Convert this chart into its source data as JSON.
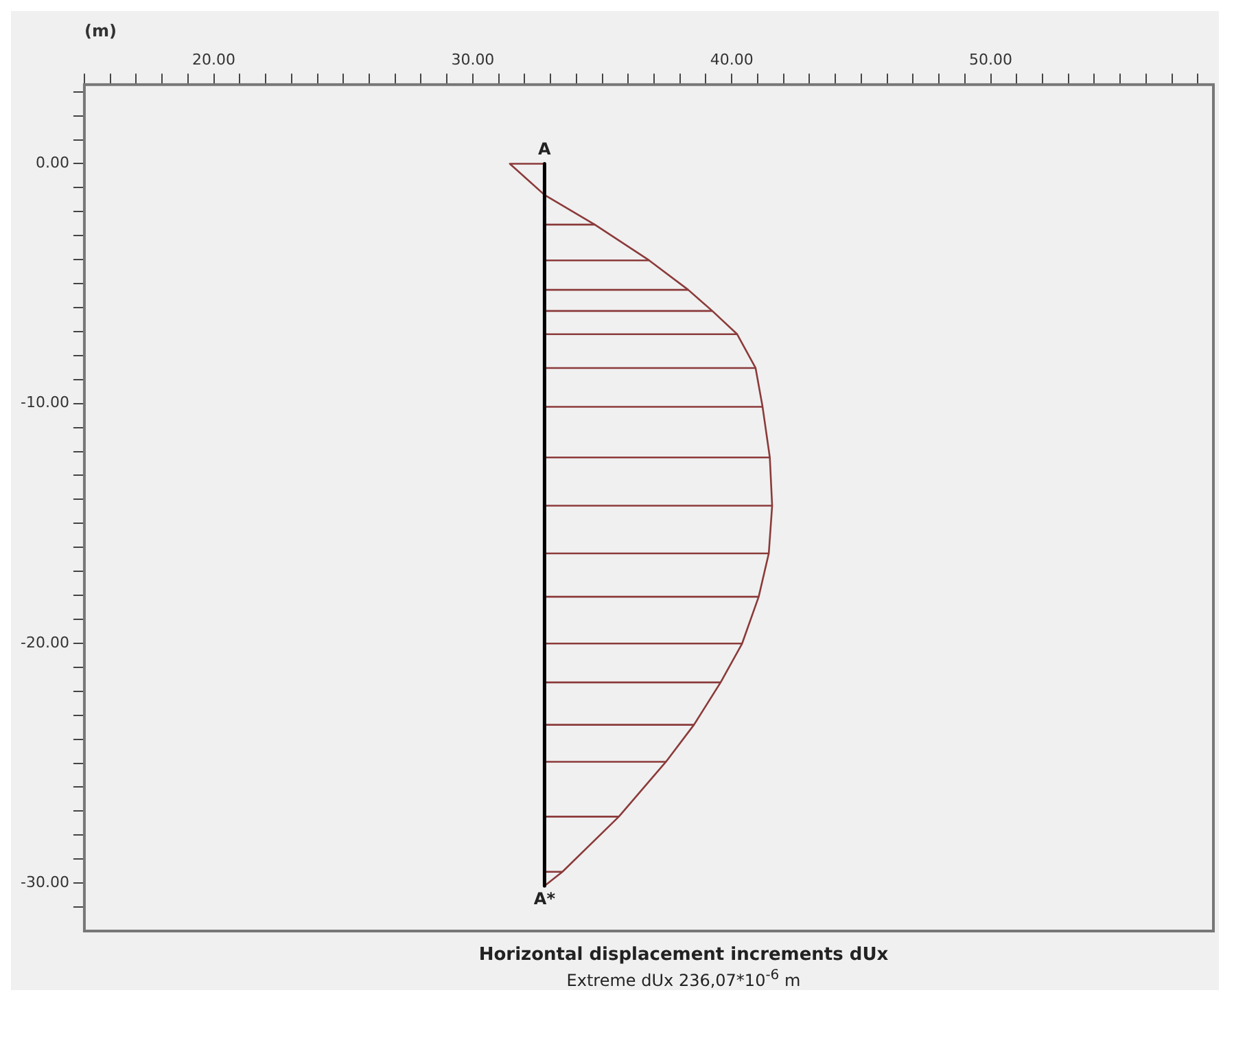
{
  "chart_data": {
    "type": "line",
    "title": "Horizontal displacement increments dUx",
    "subtitle": "Extreme dUx 236,07*10$^{-6}$ m",
    "xlabel": "(m)",
    "xlim": [
      15,
      58.6
    ],
    "ylim": [
      -32,
      3.3
    ],
    "xticks": [
      {
        "value": 15,
        "label": null
      },
      {
        "value": 16,
        "label": null
      },
      {
        "value": 17,
        "label": null
      },
      {
        "value": 18,
        "label": null
      },
      {
        "value": 19,
        "label": null
      },
      {
        "value": 20,
        "label": "20.00"
      },
      {
        "value": 21,
        "label": null
      },
      {
        "value": 22,
        "label": null
      },
      {
        "value": 23,
        "label": null
      },
      {
        "value": 24,
        "label": null
      },
      {
        "value": 25,
        "label": null
      },
      {
        "value": 26,
        "label": null
      },
      {
        "value": 27,
        "label": null
      },
      {
        "value": 28,
        "label": null
      },
      {
        "value": 29,
        "label": null
      },
      {
        "value": 30,
        "label": "30.00"
      },
      {
        "value": 31,
        "label": null
      },
      {
        "value": 32,
        "label": null
      },
      {
        "value": 33,
        "label": null
      },
      {
        "value": 34,
        "label": null
      },
      {
        "value": 35,
        "label": null
      },
      {
        "value": 36,
        "label": null
      },
      {
        "value": 37,
        "label": null
      },
      {
        "value": 38,
        "label": null
      },
      {
        "value": 39,
        "label": null
      },
      {
        "value": 40,
        "label": "40.00"
      },
      {
        "value": 41,
        "label": null
      },
      {
        "value": 42,
        "label": null
      },
      {
        "value": 43,
        "label": null
      },
      {
        "value": 44,
        "label": null
      },
      {
        "value": 45,
        "label": null
      },
      {
        "value": 46,
        "label": null
      },
      {
        "value": 47,
        "label": null
      },
      {
        "value": 48,
        "label": null
      },
      {
        "value": 49,
        "label": null
      },
      {
        "value": 50,
        "label": "50.00"
      },
      {
        "value": 51,
        "label": null
      },
      {
        "value": 52,
        "label": null
      },
      {
        "value": 53,
        "label": null
      },
      {
        "value": 54,
        "label": null
      },
      {
        "value": 55,
        "label": null
      },
      {
        "value": 56,
        "label": null
      },
      {
        "value": 57,
        "label": null
      },
      {
        "value": 58,
        "label": null
      }
    ],
    "yticks": [
      {
        "value": -31,
        "label": null
      },
      {
        "value": -30,
        "label": "-30.00"
      },
      {
        "value": -29,
        "label": null
      },
      {
        "value": -28,
        "label": null
      },
      {
        "value": -27,
        "label": null
      },
      {
        "value": -26,
        "label": null
      },
      {
        "value": -25,
        "label": null
      },
      {
        "value": -24,
        "label": null
      },
      {
        "value": -23,
        "label": null
      },
      {
        "value": -22,
        "label": null
      },
      {
        "value": -21,
        "label": null
      },
      {
        "value": -20,
        "label": "-20.00"
      },
      {
        "value": -19,
        "label": null
      },
      {
        "value": -18,
        "label": null
      },
      {
        "value": -17,
        "label": null
      },
      {
        "value": -16,
        "label": null
      },
      {
        "value": -15,
        "label": null
      },
      {
        "value": -14,
        "label": null
      },
      {
        "value": -13,
        "label": null
      },
      {
        "value": -12,
        "label": null
      },
      {
        "value": -11,
        "label": null
      },
      {
        "value": -10,
        "label": "-10.00"
      },
      {
        "value": -9,
        "label": null
      },
      {
        "value": -8,
        "label": null
      },
      {
        "value": -7,
        "label": null
      },
      {
        "value": -6,
        "label": null
      },
      {
        "value": -5,
        "label": null
      },
      {
        "value": -4,
        "label": null
      },
      {
        "value": -3,
        "label": null
      },
      {
        "value": -2,
        "label": null
      },
      {
        "value": -1,
        "label": null
      },
      {
        "value": 0,
        "label": "0.00"
      },
      {
        "value": 1,
        "label": null
      },
      {
        "value": 2,
        "label": null
      },
      {
        "value": 3,
        "label": null
      }
    ],
    "grid": false,
    "legend": false,
    "marker": "none",
    "line_style": "solid",
    "annotations": [
      {
        "text": "A",
        "x": 32.77,
        "y": 0
      },
      {
        "text": "A*",
        "x": 32.77,
        "y": -30.12
      }
    ],
    "series": [
      {
        "color": "#000000",
        "x": [
          32.77,
          32.77
        ],
        "values": [
          0,
          -30.12
        ]
      },
      {
        "color": "#8b3a3a",
        "x": [
          32.77,
          31.43,
          32.77,
          34.71,
          36.81,
          38.32,
          39.25,
          40.21,
          40.92,
          41.19,
          41.47,
          41.56,
          41.43,
          41.04,
          40.4,
          39.57,
          38.54,
          37.46,
          35.64,
          33.46,
          32.77
        ],
        "values": [
          0,
          0,
          -1.3,
          -2.54,
          -4.03,
          -5.26,
          -6.14,
          -7.11,
          -8.52,
          -10.14,
          -12.25,
          -14.26,
          -16.25,
          -18.06,
          -20.01,
          -21.63,
          -23.4,
          -24.94,
          -27.23,
          -29.53,
          -30.12
        ]
      },
      {
        "color": "#8b3a3a",
        "x": [
          32.77,
          34.71
        ],
        "values": [
          -2.54,
          -2.54
        ]
      },
      {
        "color": "#8b3a3a",
        "x": [
          32.77,
          36.81
        ],
        "values": [
          -4.03,
          -4.03
        ]
      },
      {
        "color": "#8b3a3a",
        "x": [
          32.77,
          38.32
        ],
        "values": [
          -5.26,
          -5.26
        ]
      },
      {
        "color": "#8b3a3a",
        "x": [
          32.77,
          39.25
        ],
        "values": [
          -6.14,
          -6.14
        ]
      },
      {
        "color": "#8b3a3a",
        "x": [
          32.77,
          40.21
        ],
        "values": [
          -7.11,
          -7.11
        ]
      },
      {
        "color": "#8b3a3a",
        "x": [
          32.77,
          40.92
        ],
        "values": [
          -8.52,
          -8.52
        ]
      },
      {
        "color": "#8b3a3a",
        "x": [
          32.77,
          41.19
        ],
        "values": [
          -10.14,
          -10.14
        ]
      },
      {
        "color": "#8b3a3a",
        "x": [
          32.77,
          41.47
        ],
        "values": [
          -12.25,
          -12.25
        ]
      },
      {
        "color": "#8b3a3a",
        "x": [
          32.77,
          41.56
        ],
        "values": [
          -14.26,
          -14.26
        ]
      },
      {
        "color": "#8b3a3a",
        "x": [
          32.77,
          41.43
        ],
        "values": [
          -16.25,
          -16.25
        ]
      },
      {
        "color": "#8b3a3a",
        "x": [
          32.77,
          41.04
        ],
        "values": [
          -18.06,
          -18.06
        ]
      },
      {
        "color": "#8b3a3a",
        "x": [
          32.77,
          40.4
        ],
        "values": [
          -20.01,
          -20.01
        ]
      },
      {
        "color": "#8b3a3a",
        "x": [
          32.77,
          39.57
        ],
        "values": [
          -21.63,
          -21.63
        ]
      },
      {
        "color": "#8b3a3a",
        "x": [
          32.77,
          38.54
        ],
        "values": [
          -23.4,
          -23.4
        ]
      },
      {
        "color": "#8b3a3a",
        "x": [
          32.77,
          37.46
        ],
        "values": [
          -24.94,
          -24.94
        ]
      },
      {
        "color": "#8b3a3a",
        "x": [
          32.77,
          35.64
        ],
        "values": [
          -27.23,
          -27.23
        ]
      },
      {
        "color": "#8b3a3a",
        "x": [
          32.77,
          33.46
        ],
        "values": [
          -29.53,
          -29.53
        ]
      }
    ]
  }
}
